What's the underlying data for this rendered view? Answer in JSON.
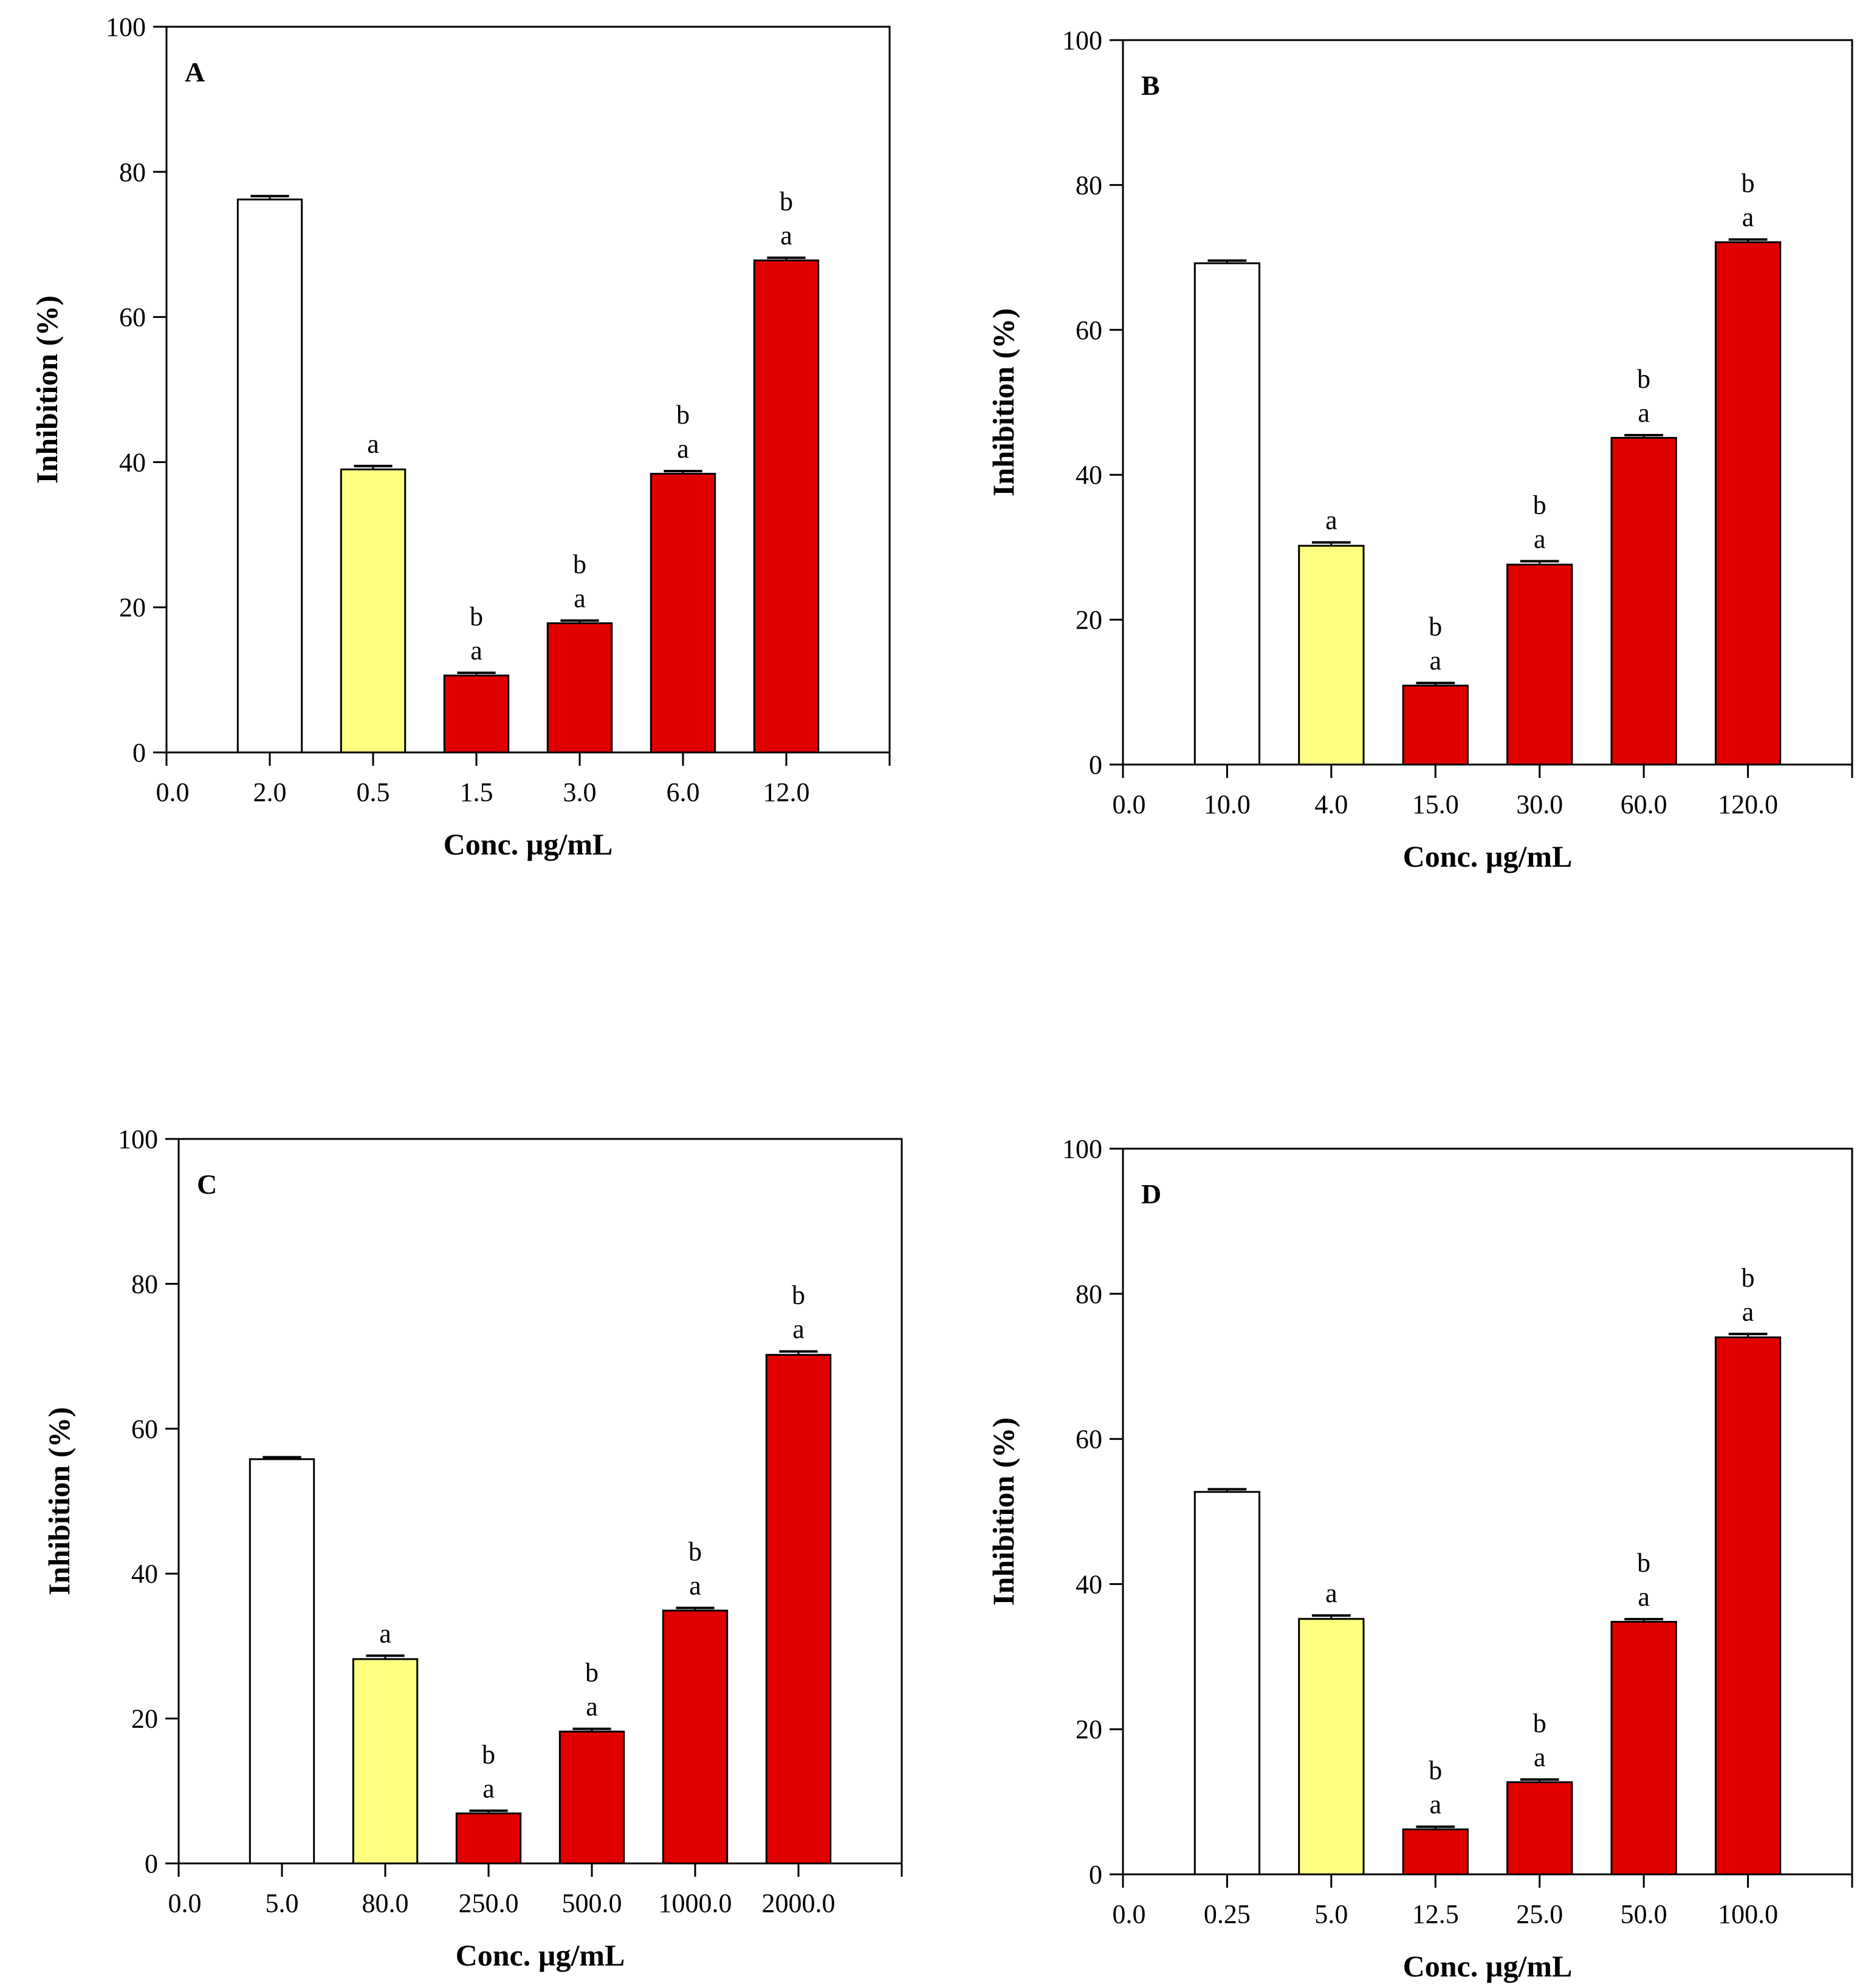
{
  "chart_data": [
    {
      "type": "bar",
      "panel": "A",
      "xlabel": "Conc. µg/mL",
      "ylabel": "Inhibition (%)",
      "ylim": [
        0,
        100
      ],
      "yticks": [
        "0",
        "20",
        "40",
        "60",
        "80",
        "100"
      ],
      "x_origin_label": "0.0",
      "categories": [
        "2.0",
        "0.5",
        "1.5",
        "3.0",
        "6.0",
        "12.0"
      ],
      "values": [
        76.2,
        39.0,
        10.6,
        17.8,
        38.4,
        67.8
      ],
      "errors": [
        0.3,
        0.3,
        0.2,
        0.2,
        0.2,
        0.2
      ],
      "bar_groups": [
        "standard",
        "reference",
        "sample",
        "sample",
        "sample",
        "sample"
      ],
      "sig_labels": [
        [],
        [
          "a"
        ],
        [
          "b",
          "a"
        ],
        [
          "b",
          "a"
        ],
        [
          "b",
          "a"
        ],
        [
          "b",
          "a"
        ]
      ]
    },
    {
      "type": "bar",
      "panel": "B",
      "xlabel": "Conc. µg/mL",
      "ylabel": "Inhibition (%)",
      "ylim": [
        0,
        100
      ],
      "yticks": [
        "0",
        "20",
        "40",
        "60",
        "80",
        "100"
      ],
      "x_origin_label": "0.0",
      "categories": [
        "10.0",
        "4.0",
        "15.0",
        "30.0",
        "60.0",
        "120.0"
      ],
      "values": [
        69.2,
        30.2,
        10.9,
        27.6,
        45.1,
        72.1
      ],
      "errors": [
        0.2,
        0.3,
        0.2,
        0.3,
        0.2,
        0.2
      ],
      "bar_groups": [
        "standard",
        "reference",
        "sample",
        "sample",
        "sample",
        "sample"
      ],
      "sig_labels": [
        [],
        [
          "a"
        ],
        [
          "b",
          "a"
        ],
        [
          "b",
          "a"
        ],
        [
          "b",
          "a"
        ],
        [
          "b",
          "a"
        ]
      ]
    },
    {
      "type": "bar",
      "panel": "C",
      "xlabel": "Conc. µg/mL",
      "ylabel": "Inhibition (%)",
      "ylim": [
        0,
        100
      ],
      "yticks": [
        "0",
        "20",
        "40",
        "60",
        "80",
        "100"
      ],
      "x_origin_label": "0.0",
      "categories": [
        "5.0",
        "80.0",
        "250.0",
        "500.0",
        "1000.0",
        "2000.0"
      ],
      "values": [
        55.8,
        28.2,
        6.9,
        18.2,
        34.9,
        70.2
      ],
      "errors": [
        0.1,
        0.3,
        0.2,
        0.2,
        0.2,
        0.3
      ],
      "bar_groups": [
        "standard",
        "reference",
        "sample",
        "sample",
        "sample",
        "sample"
      ],
      "sig_labels": [
        [],
        [
          "a"
        ],
        [
          "b",
          "a"
        ],
        [
          "b",
          "a"
        ],
        [
          "b",
          "a"
        ],
        [
          "b",
          "a"
        ]
      ]
    },
    {
      "type": "bar",
      "panel": "D",
      "xlabel": "Conc. µg/mL",
      "ylabel": "Inhibition (%)",
      "ylim": [
        0,
        100
      ],
      "yticks": [
        "0",
        "20",
        "40",
        "60",
        "80",
        "100"
      ],
      "x_origin_label": "0.0",
      "categories": [
        "0.25",
        "5.0",
        "12.5",
        "25.0",
        "50.0",
        "100.0"
      ],
      "values": [
        52.7,
        35.2,
        6.2,
        12.7,
        34.8,
        74.0
      ],
      "errors": [
        0.2,
        0.3,
        0.2,
        0.2,
        0.2,
        0.3
      ],
      "bar_groups": [
        "standard",
        "reference",
        "sample",
        "sample",
        "sample",
        "sample"
      ],
      "sig_labels": [
        [],
        [
          "a"
        ],
        [
          "b",
          "a"
        ],
        [
          "b",
          "a"
        ],
        [
          "b",
          "a"
        ],
        [
          "b",
          "a"
        ]
      ]
    }
  ],
  "colors": {
    "standard": "#ffffff",
    "reference": "#ffff80",
    "sample": "#e00000",
    "axis": "#000000"
  }
}
